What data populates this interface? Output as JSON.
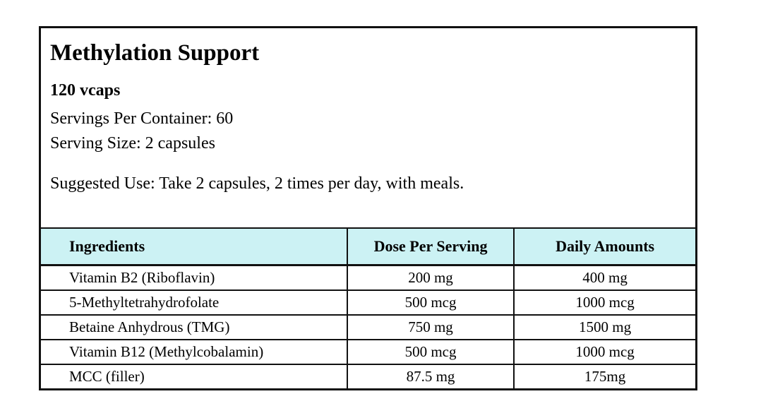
{
  "panel": {
    "title": "Methylation Support",
    "quantity": "120 vcaps",
    "servings_per_container": "Servings Per Container: 60",
    "serving_size": "Serving Size: 2 capsules",
    "suggested_use": "Suggested Use: Take 2 capsules, 2 times per day, with meals."
  },
  "colors": {
    "table_header_bg": "#ccf2f4",
    "border": "#111111"
  },
  "table": {
    "headers": [
      "Ingredients",
      "Dose Per Serving",
      "Daily Amounts"
    ],
    "rows": [
      [
        "Vitamin B2 (Riboflavin)",
        "200 mg",
        "400 mg"
      ],
      [
        "5-Methyltetrahydrofolate",
        "500 mcg",
        "1000 mcg"
      ],
      [
        "Betaine Anhydrous (TMG)",
        "750 mg",
        "1500 mg"
      ],
      [
        "Vitamin B12 (Methylcobalamin)",
        "500 mcg",
        "1000 mcg"
      ],
      [
        "MCC (filler)",
        "87.5 mg",
        "175mg"
      ]
    ]
  }
}
